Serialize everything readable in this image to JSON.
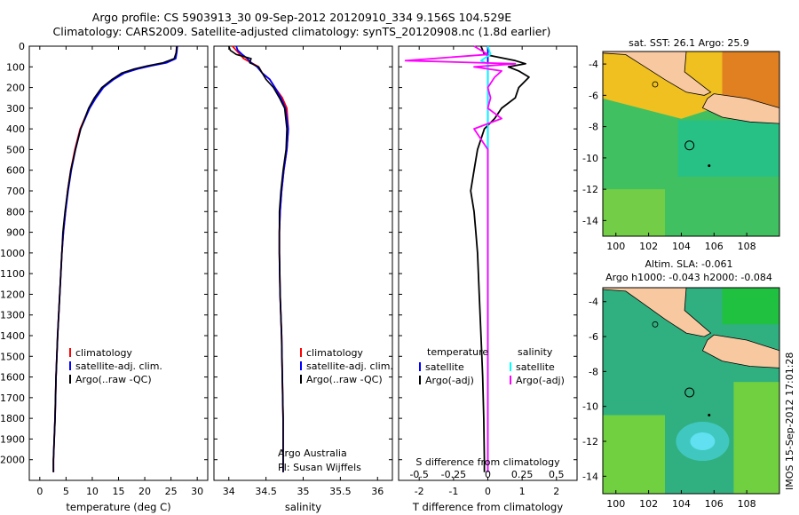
{
  "header": {
    "line1": "Argo profile: CS 5903913_30 09-Sep-2012 20120910_334 9.156S 104.529E",
    "line2": "Climatology: CARS2009. Satellite-adjusted climatology: synTS_20120908.nc (1.8d earlier)"
  },
  "colors": {
    "clim": "#ff0000",
    "sat": "#0000ff",
    "argo": "#000000",
    "sal_sat": "#00ffff",
    "sal_argo": "#ff00ff",
    "land": "#f8c8a0"
  },
  "depth_axis": {
    "ticks": [
      0,
      100,
      200,
      300,
      400,
      500,
      600,
      700,
      800,
      900,
      1000,
      1100,
      1200,
      1300,
      1400,
      1500,
      1600,
      1700,
      1800,
      1900,
      2000
    ],
    "range": [
      0,
      2100
    ]
  },
  "chart_data": [
    {
      "type": "line",
      "id": "temperature",
      "xlabel": "temperature (deg C)",
      "xlim": [
        -2,
        32
      ],
      "xticks": [
        0,
        5,
        10,
        15,
        20,
        25,
        30
      ],
      "legend": [
        "climatology",
        "satellite-adj. clim.",
        "Argo(..raw -QC)"
      ],
      "depth": [
        0,
        30,
        60,
        80,
        95,
        110,
        130,
        160,
        200,
        250,
        300,
        400,
        500,
        600,
        700,
        800,
        900,
        1000,
        1200,
        1400,
        1600,
        1800,
        2000,
        2060
      ],
      "series": [
        {
          "name": "climatology",
          "values": [
            26.1,
            26.0,
            25.8,
            24.0,
            21.0,
            18.5,
            16.0,
            14.0,
            12.0,
            10.6,
            9.4,
            7.7,
            6.7,
            5.9,
            5.3,
            4.9,
            4.5,
            4.2,
            3.8,
            3.4,
            3.1,
            2.9,
            2.6,
            2.6
          ]
        },
        {
          "name": "satellite-adj. clim.",
          "values": [
            26.2,
            26.1,
            25.9,
            24.2,
            21.2,
            18.6,
            16.1,
            14.1,
            12.1,
            10.7,
            9.5,
            7.8,
            6.8,
            6.0,
            5.4,
            4.9,
            4.5,
            4.2,
            3.8,
            3.4,
            3.1,
            2.9,
            2.6,
            2.6
          ]
        },
        {
          "name": "Argo(..raw -QC)",
          "values": [
            26.1,
            26.0,
            25.6,
            23.5,
            20.5,
            18.0,
            15.6,
            13.8,
            11.8,
            10.4,
            9.3,
            7.8,
            6.8,
            5.9,
            5.3,
            4.8,
            4.4,
            4.2,
            3.8,
            3.4,
            3.1,
            2.9,
            2.6,
            2.6
          ]
        }
      ]
    },
    {
      "type": "line",
      "id": "salinity",
      "xlabel": "salinity",
      "xlim": [
        33.8,
        36.2
      ],
      "xticks": [
        34,
        34.5,
        35,
        35.5,
        36
      ],
      "legend": [
        "climatology",
        "satellite-adj. clim.",
        "Argo(..raw -QC)"
      ],
      "annotations": [
        "Argo Australia",
        "PI: Susan Wijffels"
      ],
      "depth": [
        0,
        20,
        40,
        60,
        80,
        100,
        130,
        160,
        200,
        250,
        300,
        400,
        500,
        600,
        700,
        800,
        900,
        1000,
        1200,
        1400,
        1600,
        1800,
        2000,
        2060
      ],
      "series": [
        {
          "name": "climatology",
          "values": [
            34.05,
            34.1,
            34.15,
            34.2,
            34.3,
            34.4,
            34.45,
            34.55,
            34.62,
            34.72,
            34.78,
            34.8,
            34.78,
            34.74,
            34.71,
            34.69,
            34.68,
            34.68,
            34.69,
            34.71,
            34.72,
            34.73,
            34.73,
            34.73
          ]
        },
        {
          "name": "satellite-adj. clim.",
          "values": [
            34.1,
            34.12,
            34.18,
            34.25,
            34.3,
            34.38,
            34.45,
            34.55,
            34.62,
            34.7,
            34.76,
            34.8,
            34.78,
            34.74,
            34.71,
            34.69,
            34.68,
            34.68,
            34.69,
            34.71,
            34.72,
            34.73,
            34.73,
            34.73
          ]
        },
        {
          "name": "Argo(..raw -QC)",
          "values": [
            34.0,
            34.02,
            34.1,
            34.3,
            34.28,
            34.4,
            34.45,
            34.5,
            34.6,
            34.68,
            34.75,
            34.78,
            34.77,
            34.73,
            34.7,
            34.68,
            34.68,
            34.68,
            34.69,
            34.71,
            34.72,
            34.73,
            34.73,
            34.73
          ]
        }
      ]
    },
    {
      "type": "line",
      "id": "difference",
      "xlabel": "T difference from climatology",
      "xlabel_top": "S difference from climatology",
      "xlim": [
        -2.6,
        2.6
      ],
      "xticks": [
        -2,
        -1,
        0,
        1,
        2
      ],
      "xticks_top": [
        -0.5,
        -0.25,
        0,
        0.25,
        0.5
      ],
      "legend_temperature_title": "temperature",
      "legend_salinity_title": "salinity",
      "legend": [
        "satellite",
        "Argo(-adj)",
        "satellite",
        "Argo(-adj)"
      ],
      "depth": [
        0,
        40,
        70,
        85,
        100,
        120,
        150,
        200,
        250,
        300,
        350,
        400,
        500,
        600,
        700,
        800,
        900,
        1000,
        1200,
        1400,
        1600,
        1800,
        2000,
        2060
      ],
      "series": [
        {
          "name": "temperature satellite",
          "values": [
            0,
            0,
            0,
            0,
            0,
            0,
            0,
            0,
            0,
            0,
            0,
            0,
            0,
            0,
            0,
            0,
            0,
            0,
            0,
            0,
            0,
            0,
            0,
            0
          ]
        },
        {
          "name": "temperature Argo(-adj)",
          "values": [
            -0.2,
            -0.1,
            0.8,
            1.1,
            0.6,
            0.9,
            1.2,
            0.9,
            0.8,
            0.4,
            0.2,
            -0.1,
            -0.3,
            -0.4,
            -0.5,
            -0.4,
            -0.35,
            -0.3,
            -0.25,
            -0.2,
            -0.15,
            -0.12,
            -0.1,
            -0.1
          ]
        },
        {
          "name": "salinity satellite",
          "values": [
            0,
            0.02,
            -0.05,
            0,
            0,
            0,
            0,
            0,
            0,
            0,
            0,
            0,
            0,
            0,
            0,
            0,
            0,
            0,
            0,
            0,
            0,
            0,
            0,
            0
          ]
        },
        {
          "name": "salinity Argo(-adj)",
          "values": [
            -0.1,
            0,
            -0.6,
            0.2,
            -0.1,
            0.1,
            0.05,
            0,
            0.02,
            0,
            0.1,
            -0.1,
            0,
            0,
            0,
            0,
            0,
            0,
            0,
            0,
            0,
            0,
            0,
            0
          ]
        }
      ]
    }
  ],
  "maps": [
    {
      "title": "sat. SST: 26.1 Argo: 25.9",
      "xticks": [
        100,
        102,
        104,
        106,
        108
      ],
      "yticks": [
        -4,
        -6,
        -8,
        -10,
        -12,
        -14
      ],
      "xlim": [
        99.2,
        110
      ],
      "ylim": [
        -15,
        -3.2
      ],
      "float_position": [
        104.5,
        -9.2
      ],
      "field": "sst"
    },
    {
      "title": "Altim. SLA: -0.061",
      "subtitle": "Argo h1000: -0.043 h2000: -0.084",
      "xticks": [
        100,
        102,
        104,
        106,
        108
      ],
      "yticks": [
        -4,
        -6,
        -8,
        -10,
        -12,
        -14
      ],
      "xlim": [
        99.2,
        110
      ],
      "ylim": [
        -15,
        -3.2
      ],
      "float_position": [
        104.5,
        -9.2
      ],
      "field": "sla"
    }
  ],
  "side_label": "IMOS 15-Sep-2012 17:01:28"
}
